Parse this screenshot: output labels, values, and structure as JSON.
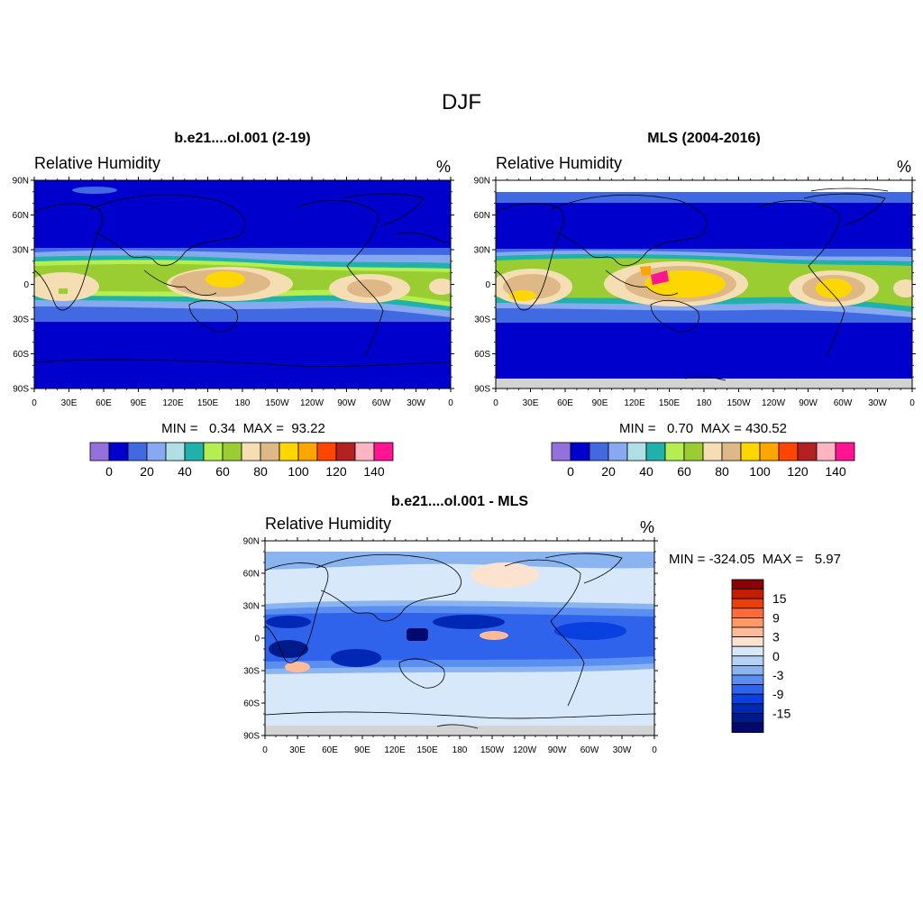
{
  "title": "DJF",
  "panels": [
    {
      "id": "model",
      "title": "b.e21....ol.001 (2-19)",
      "left_string": "Relative Humidity",
      "right_string": "%",
      "stats": "MIN =   0.34  MAX =  93.22"
    },
    {
      "id": "obs",
      "title": "MLS (2004-2016)",
      "left_string": "Relative Humidity",
      "right_string": "%",
      "stats": "MIN =   0.70  MAX = 430.52"
    },
    {
      "id": "diff",
      "title": "b.e21....ol.001 - MLS",
      "left_string": "Relative Humidity",
      "right_string": "%",
      "stats": "MIN = -324.05  MAX =   5.97"
    }
  ],
  "lat_ticks": [
    "90N",
    "60N",
    "30N",
    "0",
    "30S",
    "60S",
    "90S"
  ],
  "lon_ticks": [
    "0",
    "30E",
    "60E",
    "90E",
    "120E",
    "150E",
    "180",
    "150W",
    "120W",
    "90W",
    "60W",
    "30W",
    "0"
  ],
  "colorbar_main": {
    "colors": [
      "#9370db",
      "#0000cd",
      "#4169e1",
      "#87a9f0",
      "#b0e0e6",
      "#20b2aa",
      "#b4ee50",
      "#9acd32",
      "#f5deb3",
      "#deb887",
      "#ffd700",
      "#ffa500",
      "#ff4500",
      "#b22222",
      "#ffb6c1",
      "#ff1493"
    ],
    "labels": [
      "0",
      "20",
      "40",
      "60",
      "80",
      "100",
      "120",
      "140"
    ]
  },
  "colorbar_diff": {
    "colors": [
      "#8b0000",
      "#c41e00",
      "#e8400a",
      "#ff6a3a",
      "#ff9966",
      "#ffbb99",
      "#fde3cf",
      "#d7e8fb",
      "#b4d2f5",
      "#8ab4f0",
      "#5a8ef0",
      "#2f63eb",
      "#0a3fe0",
      "#0028b4",
      "#001a8c",
      "#000a6e"
    ],
    "labels": [
      "15",
      "9",
      "3",
      "0",
      "-3",
      "-9",
      "-15"
    ]
  }
}
